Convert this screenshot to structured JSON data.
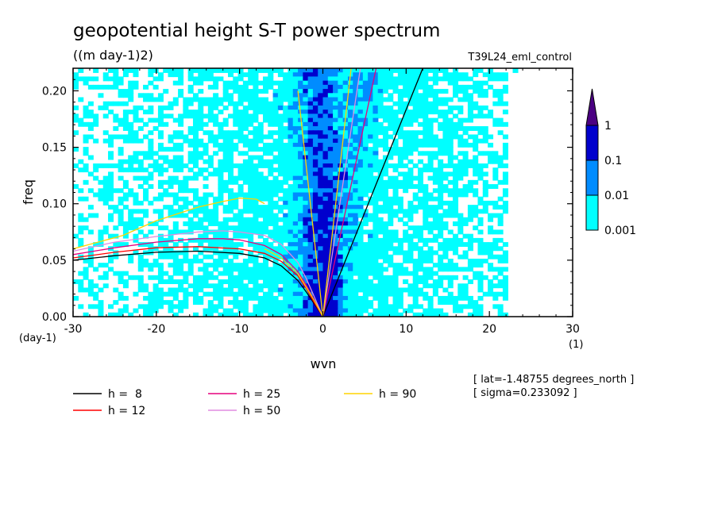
{
  "title": "geopotential height S-T power spectrum",
  "units": "((m day-1)2)",
  "run_label": "T39L24_eml_control",
  "footnotes": [
    "[ lat=-1.48755 degrees_north ]",
    "[ sigma=0.233092 ]"
  ],
  "colors": {
    "level_0001": "#00ffff",
    "level_001": "#008cff",
    "level_01": "#0000cd",
    "level_1": "#4b0082",
    "h8": "#000000",
    "h12": "#ff0000",
    "h25": "#e6007e",
    "h50": "#e08ce0",
    "h90": "#ffd400"
  },
  "chart_data": {
    "type": "heatmap",
    "title": "geopotential height S-T power spectrum",
    "xlabel": "wvn",
    "ylabel": "freq",
    "x_unit_label": "(1)",
    "y_unit_label": "(day-1)",
    "xlim": [
      -30,
      30
    ],
    "ylim": [
      0,
      0.22
    ],
    "xticks": [
      {
        "v": -30,
        "label": "-30"
      },
      {
        "v": -20,
        "label": "-20"
      },
      {
        "v": -10,
        "label": "-10"
      },
      {
        "v": 0,
        "label": "0"
      },
      {
        "v": 10,
        "label": "10"
      },
      {
        "v": 20,
        "label": "20"
      },
      {
        "v": 30,
        "label": "30"
      }
    ],
    "yticks": [
      {
        "v": 0,
        "label": "0.00"
      },
      {
        "v": 0.05,
        "label": "0.05"
      },
      {
        "v": 0.1,
        "label": "0.10"
      },
      {
        "v": 0.15,
        "label": "0.15"
      },
      {
        "v": 0.2,
        "label": "0.20"
      }
    ],
    "contour_levels": [
      0.001,
      0.01,
      0.1,
      1
    ],
    "colorbar_labels": [
      "0.001",
      "0.01",
      "0.1",
      "1"
    ],
    "legend": [
      {
        "name": "h =  8",
        "color": "#000000"
      },
      {
        "name": "h = 12",
        "color": "#ff0000"
      },
      {
        "name": "h = 25",
        "color": "#e6007e"
      },
      {
        "name": "h = 50",
        "color": "#e08ce0"
      },
      {
        "name": "h = 90",
        "color": "#ffd400"
      }
    ],
    "dispersion_curves": [
      {
        "name": "h =  8",
        "color": "#000000",
        "kind": "rossby",
        "points": [
          [
            -30,
            0.05
          ],
          [
            -25,
            0.054
          ],
          [
            -20,
            0.057
          ],
          [
            -15,
            0.058
          ],
          [
            -10,
            0.056
          ],
          [
            -7,
            0.052
          ],
          [
            -5,
            0.045
          ],
          [
            -3,
            0.032
          ],
          [
            -2,
            0.022
          ],
          [
            -1,
            0.011
          ],
          [
            0,
            0
          ]
        ]
      },
      {
        "name": "h =  8",
        "color": "#000000",
        "kind": "kelvin",
        "points": [
          [
            0,
            0
          ],
          [
            12,
            0.22
          ]
        ]
      },
      {
        "name": "h = 12",
        "color": "#ff0000",
        "kind": "rossby",
        "points": [
          [
            -30,
            0.052
          ],
          [
            -25,
            0.057
          ],
          [
            -20,
            0.061
          ],
          [
            -15,
            0.062
          ],
          [
            -10,
            0.06
          ],
          [
            -7,
            0.056
          ],
          [
            -5,
            0.049
          ],
          [
            -3,
            0.036
          ],
          [
            -2,
            0.025
          ],
          [
            -1,
            0.012
          ],
          [
            0,
            0
          ]
        ]
      },
      {
        "name": "h = 25",
        "color": "#e6007e",
        "kind": "rossby",
        "points": [
          [
            -30,
            0.055
          ],
          [
            -25,
            0.061
          ],
          [
            -20,
            0.066
          ],
          [
            -15,
            0.069
          ],
          [
            -12,
            0.069
          ],
          [
            -10,
            0.068
          ],
          [
            -7,
            0.063
          ],
          [
            -5,
            0.055
          ],
          [
            -3,
            0.04
          ],
          [
            -2,
            0.028
          ],
          [
            -1,
            0.014
          ],
          [
            0,
            0
          ]
        ]
      },
      {
        "name": "h = 25",
        "color": "#e6007e",
        "kind": "kelvin",
        "points": [
          [
            0,
            0
          ],
          [
            6.4,
            0.22
          ]
        ]
      },
      {
        "name": "h = 50",
        "color": "#e08ce0",
        "kind": "rossby",
        "points": [
          [
            -30,
            0.058
          ],
          [
            -25,
            0.066
          ],
          [
            -20,
            0.071
          ],
          [
            -15,
            0.075
          ],
          [
            -12,
            0.076
          ],
          [
            -10,
            0.075
          ],
          [
            -7,
            0.072
          ],
          [
            -5,
            0.064
          ],
          [
            -3,
            0.048
          ],
          [
            -2,
            0.034
          ],
          [
            -1,
            0.017
          ],
          [
            0,
            0
          ]
        ]
      },
      {
        "name": "h = 50",
        "color": "#e08ce0",
        "kind": "kelvin",
        "points": [
          [
            0,
            0
          ],
          [
            4.5,
            0.22
          ]
        ]
      },
      {
        "name": "h = 90",
        "color": "#ffd400",
        "kind": "rossby",
        "points": [
          [
            -30,
            0.06
          ],
          [
            -24,
            0.072
          ],
          [
            -20,
            0.085
          ],
          [
            -15,
            0.097
          ],
          [
            -12,
            0.102
          ],
          [
            -10,
            0.105
          ],
          [
            -8,
            0.104
          ],
          [
            -7,
            0.1
          ]
        ]
      },
      {
        "name": "h = 90",
        "color": "#ffd400",
        "kind": "rossby_lower",
        "points": [
          [
            -7,
            0.06
          ],
          [
            -5,
            0.052
          ],
          [
            -3,
            0.038
          ],
          [
            -1,
            0.014
          ],
          [
            0,
            0
          ]
        ]
      },
      {
        "name": "h = 90",
        "color": "#ffd400",
        "kind": "kelvin",
        "points": [
          [
            0,
            0
          ],
          [
            3.4,
            0.22
          ]
        ]
      },
      {
        "name": "h = 90",
        "color": "#ffd400",
        "kind": "mrg",
        "points": [
          [
            0,
            0
          ],
          [
            -3,
            0.2
          ]
        ]
      }
    ]
  }
}
